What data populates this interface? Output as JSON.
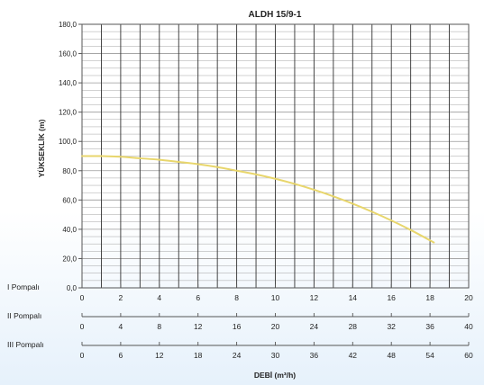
{
  "chart_data": {
    "type": "line",
    "title": "ALDH 15/9-1",
    "ylabel": "YÜKSEKLİK (m)",
    "xlabel": "DEBİ (m³/h)",
    "ylim": [
      0,
      180
    ],
    "yticks": [
      "0,0",
      "20,0",
      "40,0",
      "60,0",
      "80,0",
      "100,0",
      "120,0",
      "140,0",
      "160,0",
      "180,0"
    ],
    "xlim": [
      0,
      20
    ],
    "grid": true,
    "colors": {
      "curve": "#e8d66c",
      "grid": "#9a9a9a",
      "frame": "#555555",
      "text": "#222222"
    },
    "axes": [
      {
        "label": "I Pompalı",
        "ticks": [
          "0",
          "2",
          "4",
          "6",
          "8",
          "10",
          "12",
          "14",
          "16",
          "18",
          "20"
        ]
      },
      {
        "label": "II Pompalı",
        "ticks": [
          "0",
          "4",
          "8",
          "12",
          "16",
          "20",
          "24",
          "28",
          "32",
          "36",
          "40"
        ]
      },
      {
        "label": "III Pompalı",
        "ticks": [
          "0",
          "6",
          "12",
          "18",
          "24",
          "30",
          "36",
          "42",
          "48",
          "54",
          "60"
        ]
      }
    ],
    "series": [
      {
        "x": [
          0,
          1,
          2,
          3,
          4,
          5,
          6,
          7,
          8,
          9,
          10,
          11,
          12,
          13,
          14,
          15,
          16,
          17,
          18.2
        ],
        "y": [
          90,
          90,
          89.5,
          88.5,
          87.5,
          86,
          84.5,
          82.5,
          80,
          77.5,
          74.5,
          71,
          67,
          62.5,
          57.5,
          52,
          46,
          39.5,
          31
        ]
      }
    ]
  }
}
